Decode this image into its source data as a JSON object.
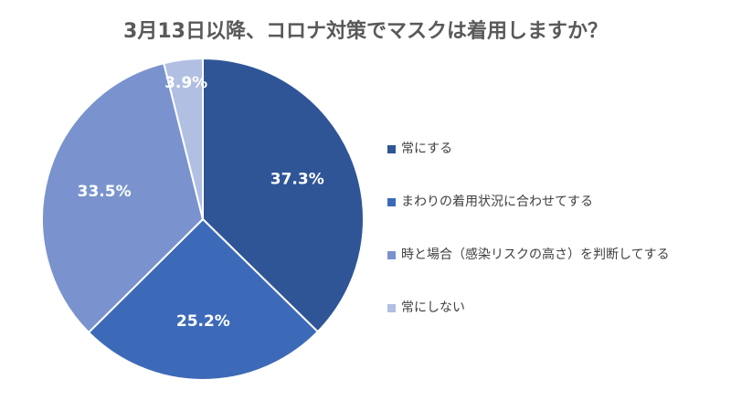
{
  "chart_data": {
    "type": "pie",
    "title": "3月13日以降、コロナ対策でマスクは着用しますか？",
    "categories": [
      "常にする",
      "まわりの着用状況に合わせてする",
      "時と場合（感染リスクの高さ）を判断してする",
      "常にしない"
    ],
    "values": [
      37.3,
      25.2,
      33.5,
      3.9
    ],
    "data_labels": [
      "37.3%",
      "25.2%",
      "33.5%",
      "3.9%"
    ],
    "colors": [
      "#2F5597",
      "#3D6AB8",
      "#7A93CE",
      "#B1BFE3"
    ],
    "start_angle_deg": 0,
    "direction": "clockwise",
    "legend_position": "right"
  }
}
